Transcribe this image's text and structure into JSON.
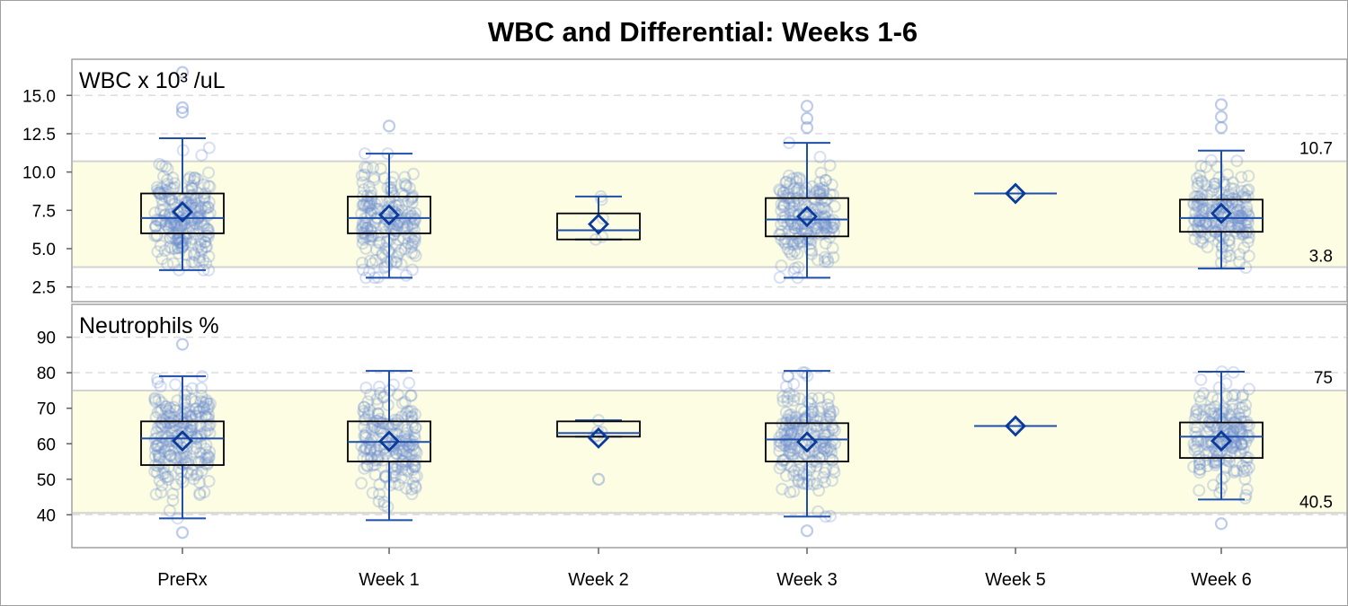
{
  "chart_data": {
    "type": "box",
    "title": "WBC and Differential: Weeks 1-6",
    "categories": [
      "PreRx",
      "Week 1",
      "Week 2",
      "Week 3",
      "Week 5",
      "Week 6"
    ],
    "colors": {
      "box_edge": "#000000",
      "whisker": "#1f4fa8",
      "mean_marker": "#0a3a9a",
      "points": "#6f8fcf",
      "normal_band": "#fdfde3",
      "ref_line": "#d3d3d3",
      "grid": "#dddddd",
      "frame": "#a0a0a0"
    },
    "panels": [
      {
        "title": "WBC x 10³ /uL",
        "ylim": [
          1.6,
          17.3
        ],
        "yticks": [
          "2.5",
          "5.0",
          "7.5",
          "10.0",
          "12.5",
          "15.0"
        ],
        "grid": true,
        "reference_band": {
          "low": 3.8,
          "high": 10.7,
          "low_label": "3.8",
          "high_label": "10.7"
        },
        "boxes": [
          {
            "category": "PreRx",
            "q1": 6.0,
            "median": 7.0,
            "q3": 8.6,
            "whisker_low": 3.6,
            "whisker_high": 12.2,
            "mean": 7.4,
            "points": {
              "count": 230,
              "outliers": [
                16.5,
                14.2,
                13.9
              ]
            }
          },
          {
            "category": "Week 1",
            "q1": 6.0,
            "median": 7.0,
            "q3": 8.4,
            "whisker_low": 3.1,
            "whisker_high": 11.2,
            "mean": 7.2,
            "points": {
              "count": 200,
              "outliers": [
                13.0
              ]
            }
          },
          {
            "category": "Week 2",
            "q1": 5.6,
            "median": 6.2,
            "q3": 7.3,
            "whisker_low": 5.6,
            "whisker_high": 8.4,
            "mean": 6.6,
            "points": {
              "count": 5,
              "outliers": []
            }
          },
          {
            "category": "Week 3",
            "q1": 5.8,
            "median": 6.9,
            "q3": 8.3,
            "whisker_low": 3.1,
            "whisker_high": 11.9,
            "mean": 7.1,
            "points": {
              "count": 200,
              "outliers": [
                14.3,
                13.5,
                12.9
              ]
            }
          },
          {
            "category": "Week 5",
            "q1": 8.6,
            "median": 8.6,
            "q3": 8.6,
            "whisker_low": 8.6,
            "whisker_high": 8.6,
            "mean": 8.6,
            "points": {
              "count": 1,
              "outliers": []
            }
          },
          {
            "category": "Week 6",
            "q1": 6.1,
            "median": 7.0,
            "q3": 8.2,
            "whisker_low": 3.7,
            "whisker_high": 11.4,
            "mean": 7.3,
            "points": {
              "count": 200,
              "outliers": [
                14.4,
                13.6,
                12.9
              ]
            }
          }
        ]
      },
      {
        "title": "Neutrophils %",
        "ylim": [
          31,
          99
        ],
        "yticks": [
          "40",
          "50",
          "60",
          "70",
          "80",
          "90"
        ],
        "grid": true,
        "reference_band": {
          "low": 40.5,
          "high": 75,
          "low_label": "40.5",
          "high_label": "75"
        },
        "boxes": [
          {
            "category": "PreRx",
            "q1": 54,
            "median": 61.5,
            "q3": 66.3,
            "whisker_low": 39,
            "whisker_high": 79,
            "mean": 60.8,
            "points": {
              "count": 230,
              "outliers": [
                88,
                35
              ]
            }
          },
          {
            "category": "Week 1",
            "q1": 55,
            "median": 60.5,
            "q3": 66.3,
            "whisker_low": 38.5,
            "whisker_high": 80.5,
            "mean": 60.7,
            "points": {
              "count": 200,
              "outliers": []
            }
          },
          {
            "category": "Week 2",
            "q1": 62,
            "median": 63,
            "q3": 66.3,
            "whisker_low": 62,
            "whisker_high": 66.6,
            "mean": 61.6,
            "points": {
              "count": 5,
              "outliers": [
                50
              ]
            }
          },
          {
            "category": "Week 3",
            "q1": 55,
            "median": 61.2,
            "q3": 65.8,
            "whisker_low": 39.5,
            "whisker_high": 80.5,
            "mean": 60.5,
            "points": {
              "count": 200,
              "outliers": [
                35.5
              ]
            }
          },
          {
            "category": "Week 5",
            "q1": 65,
            "median": 65,
            "q3": 65,
            "whisker_low": 65,
            "whisker_high": 65,
            "mean": 65,
            "points": {
              "count": 1,
              "outliers": []
            }
          },
          {
            "category": "Week 6",
            "q1": 56,
            "median": 62,
            "q3": 66,
            "whisker_low": 44.3,
            "whisker_high": 80.3,
            "mean": 60.8,
            "points": {
              "count": 200,
              "outliers": [
                37.5
              ]
            }
          }
        ]
      }
    ]
  }
}
